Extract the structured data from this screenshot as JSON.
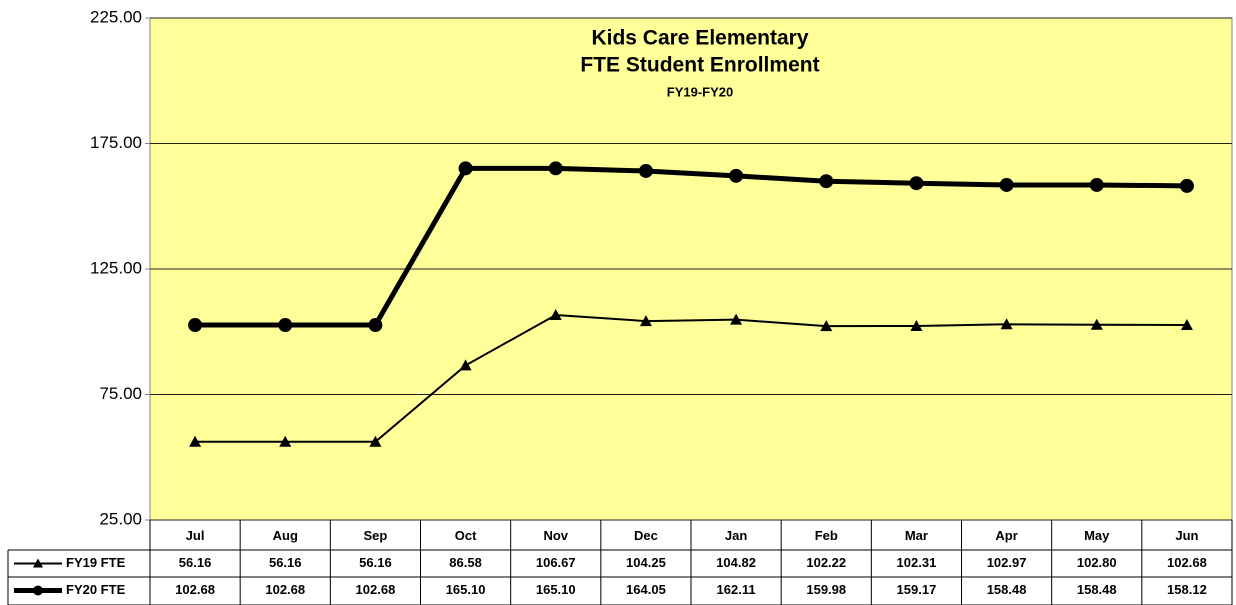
{
  "chart_data": {
    "type": "line",
    "title": [
      "Kids Care Elementary",
      "FTE Student Enrollment"
    ],
    "subtitle": "FY19-FY20",
    "categories": [
      "Jul",
      "Aug",
      "Sep",
      "Oct",
      "Nov",
      "Dec",
      "Jan",
      "Feb",
      "Mar",
      "Apr",
      "May",
      "Jun"
    ],
    "series": [
      {
        "name": "FY19 FTE",
        "color": "#000000",
        "marker": "triangle",
        "line_width": 2,
        "values": [
          56.16,
          56.16,
          56.16,
          86.58,
          106.67,
          104.25,
          104.82,
          102.22,
          102.31,
          102.97,
          102.8,
          102.68
        ],
        "value_labels": [
          "56.16",
          "56.16",
          "56.16",
          "86.58",
          "106.67",
          "104.25",
          "104.82",
          "102.22",
          "102.31",
          "102.97",
          "102.80",
          "102.68"
        ]
      },
      {
        "name": "FY20 FTE",
        "color": "#000000",
        "marker": "circle",
        "line_width": 5,
        "values": [
          102.68,
          102.68,
          102.68,
          165.1,
          165.1,
          164.05,
          162.11,
          159.98,
          159.17,
          158.48,
          158.48,
          158.12
        ],
        "value_labels": [
          "102.68",
          "102.68",
          "102.68",
          "165.10",
          "165.10",
          "164.05",
          "162.11",
          "159.98",
          "159.17",
          "158.48",
          "158.48",
          "158.12"
        ]
      }
    ],
    "ylim": [
      25,
      225
    ],
    "yticks": [
      {
        "value": 25,
        "label": "25.00"
      },
      {
        "value": 75,
        "label": "75.00"
      },
      {
        "value": 125,
        "label": "125.00"
      },
      {
        "value": 175,
        "label": "175.00"
      },
      {
        "value": 225,
        "label": "225.00"
      }
    ],
    "grid": true,
    "background": "#ffff99"
  }
}
